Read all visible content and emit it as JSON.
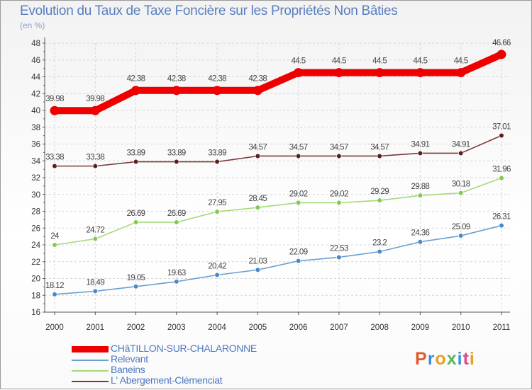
{
  "header": {
    "title": "Evolution du Taux de Taxe Foncière sur les Propriétés Non Bâties",
    "subtitle": "(en %)"
  },
  "logo": {
    "text": "Proxiti",
    "letters": [
      {
        "char": "P",
        "color": "#e05a2b"
      },
      {
        "char": "r",
        "color": "#3a8fd6"
      },
      {
        "char": "o",
        "color": "#e8a020"
      },
      {
        "char": "x",
        "color": "#5bb85a"
      },
      {
        "char": "i",
        "color": "#3a8fd6"
      },
      {
        "char": "t",
        "color": "#d94b8a"
      },
      {
        "char": "i",
        "color": "#e8a020"
      }
    ]
  },
  "chart_data": {
    "type": "line",
    "title": "Evolution du Taux de Taxe Foncière sur les Propriétés Non Bâties",
    "ylabel": "(en %)",
    "xlabel": "",
    "x": [
      "2000",
      "2001",
      "2002",
      "2003",
      "2004",
      "2005",
      "2006",
      "2007",
      "2008",
      "2009",
      "2010",
      "2011"
    ],
    "ylim": [
      16,
      48
    ],
    "yticks": [
      "16",
      "18",
      "20",
      "22",
      "24",
      "26",
      "28",
      "30",
      "32",
      "34",
      "36",
      "38",
      "40",
      "42",
      "44",
      "46",
      "48"
    ],
    "grid": true,
    "legend_position": "bottom-left",
    "series": [
      {
        "name": "CHâTILLON-SUR-CHALARONNE",
        "color": "#ee0000",
        "values": [
          39.98,
          39.98,
          42.38,
          42.38,
          42.38,
          42.38,
          44.5,
          44.5,
          44.5,
          44.5,
          44.5,
          46.66
        ],
        "labels": [
          "39.98",
          "39.98",
          "42.38",
          "42.38",
          "42.38",
          "42.38",
          "44.5",
          "44.5",
          "44.5",
          "44.5",
          "44.5",
          "46.66"
        ]
      },
      {
        "name": "Relevant",
        "color": "#6a9fd2",
        "marker_color": "#4a88c8",
        "values": [
          18.12,
          18.49,
          19.05,
          19.63,
          20.42,
          21.03,
          22.09,
          22.53,
          23.2,
          24.36,
          25.09,
          26.31
        ],
        "labels": [
          "18.12",
          "18.49",
          "19.05",
          "19.63",
          "20.42",
          "21.03",
          "22.09",
          "22.53",
          "23.2",
          "24.36",
          "25.09",
          "26.31"
        ]
      },
      {
        "name": "Baneins",
        "color": "#a4da78",
        "marker_color": "#86c84e",
        "values": [
          24,
          24.72,
          26.69,
          26.69,
          27.95,
          28.45,
          29.02,
          29.02,
          29.29,
          29.88,
          30.18,
          31.96
        ],
        "labels": [
          "24",
          "24.72",
          "26.69",
          "26.69",
          "27.95",
          "28.45",
          "29.02",
          "29.02",
          "29.29",
          "29.88",
          "30.18",
          "31.96"
        ]
      },
      {
        "name": "L' Abergement-Clémenciat",
        "color": "#7a3a3a",
        "marker_color": "#5a1f1f",
        "values": [
          33.38,
          33.38,
          33.89,
          33.89,
          33.89,
          34.57,
          34.57,
          34.57,
          34.57,
          34.91,
          34.91,
          37.01
        ],
        "labels": [
          "33.38",
          "33.38",
          "33.89",
          "33.89",
          "33.89",
          "34.57",
          "34.57",
          "34.57",
          "34.57",
          "34.91",
          "34.91",
          "37.01"
        ]
      }
    ]
  }
}
